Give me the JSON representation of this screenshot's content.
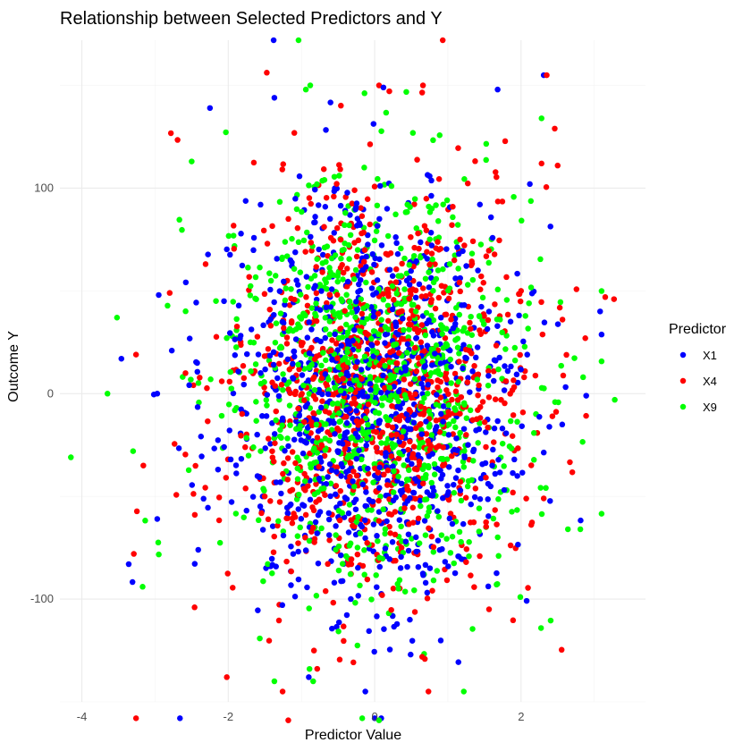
{
  "chart_data": {
    "type": "scatter",
    "title": "Relationship between Selected Predictors and Y",
    "xlabel": "Predictor Value",
    "ylabel": "Outcome Y",
    "xlim": [
      -4.3,
      3.7
    ],
    "ylim": [
      -150,
      172
    ],
    "x_ticks": [
      -4,
      -2,
      0,
      2
    ],
    "y_ticks": [
      -100,
      0,
      100
    ],
    "x_tick_labels": [
      "-4",
      "-2",
      "0",
      "2"
    ],
    "y_tick_labels": [
      "-100",
      "0",
      "100"
    ],
    "grid": true,
    "legend": {
      "title": "Predictor",
      "position": "right"
    },
    "point_count_per_series": 1000,
    "series": [
      {
        "name": "X1",
        "color": "#0000ff",
        "anchor_points": [
          [
            -3.46,
            17
          ],
          [
            -3.36,
            -83
          ],
          [
            -2.97,
            0
          ],
          [
            -2.95,
            48
          ],
          [
            -2.97,
            -61
          ],
          [
            -2.66,
            -158
          ],
          [
            -2.25,
            139
          ],
          [
            -1.38,
            172
          ],
          [
            -1.37,
            144
          ],
          [
            -0.9,
            -138
          ],
          [
            0.0,
            -158
          ],
          [
            0.09,
            -158
          ],
          [
            0.12,
            149
          ],
          [
            1.68,
            148
          ],
          [
            2.12,
            102
          ],
          [
            2.31,
            155
          ],
          [
            2.89,
            -1
          ],
          [
            3.08,
            40
          ]
        ]
      },
      {
        "name": "X4",
        "color": "#ff0000",
        "anchor_points": [
          [
            -3.26,
            -158
          ],
          [
            -3.26,
            19
          ],
          [
            -3.29,
            -78
          ],
          [
            -3.16,
            -35
          ],
          [
            -2.8,
            49
          ],
          [
            -2.46,
            -104
          ],
          [
            -2.02,
            -138
          ],
          [
            -1.18,
            -159
          ],
          [
            0.06,
            150
          ],
          [
            0.66,
            150
          ],
          [
            0.93,
            172
          ],
          [
            2.0,
            50
          ],
          [
            2.28,
            112
          ],
          [
            2.5,
            111
          ],
          [
            2.46,
            129
          ],
          [
            2.35,
            155
          ],
          [
            3.15,
            47
          ],
          [
            3.27,
            46
          ]
        ]
      },
      {
        "name": "X9",
        "color": "#00ff00",
        "anchor_points": [
          [
            -4.15,
            -31
          ],
          [
            -3.65,
            0
          ],
          [
            -3.52,
            37
          ],
          [
            -3.3,
            -28
          ],
          [
            -3.17,
            -94
          ],
          [
            -2.5,
            113
          ],
          [
            -1.37,
            -140
          ],
          [
            -1.04,
            172
          ],
          [
            -0.94,
            148
          ],
          [
            -0.89,
            -134
          ],
          [
            -0.84,
            -140
          ],
          [
            -0.88,
            150
          ],
          [
            -0.86,
            14
          ],
          [
            -0.82,
            -49
          ],
          [
            -0.17,
            -158
          ],
          [
            0.06,
            -159
          ],
          [
            0.23,
            101
          ],
          [
            1.99,
            -99
          ],
          [
            2.28,
            134
          ],
          [
            2.64,
            -66
          ],
          [
            2.81,
            -66
          ],
          [
            3.28,
            -3
          ]
        ]
      }
    ]
  }
}
